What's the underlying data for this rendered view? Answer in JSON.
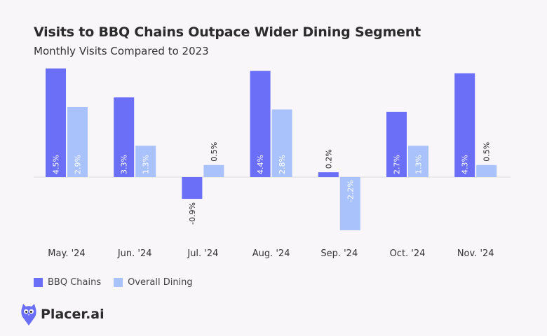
{
  "header": {
    "title": "Visits to BBQ Chains Outpace Wider Dining Segment",
    "subtitle": "Monthly Visits Compared to 2023"
  },
  "colors": {
    "bbq": "#6b6ff7",
    "dining": "#a9c2fb",
    "baseline": "#dddddd",
    "logo": "#6b6ff7"
  },
  "logo": {
    "text": "Placer.ai",
    "icon": "owl-icon"
  },
  "chart_data": {
    "type": "bar",
    "title": "Visits to BBQ Chains Outpace Wider Dining Segment",
    "subtitle": "Monthly Visits Compared to 2023",
    "categories": [
      "May. '24",
      "Jun. '24",
      "Jul. '24",
      "Aug. '24",
      "Sep. '24",
      "Oct. '24",
      "Nov. '24"
    ],
    "series": [
      {
        "name": "BBQ Chains",
        "values": [
          4.5,
          3.3,
          -0.9,
          4.4,
          0.2,
          2.7,
          4.3
        ],
        "labels": [
          "4.5%",
          "3.3%",
          "-0.9%",
          "4.4%",
          "0.2%",
          "2.7%",
          "4.3%"
        ]
      },
      {
        "name": "Overall Dining",
        "values": [
          2.9,
          1.3,
          0.5,
          2.8,
          -2.2,
          1.3,
          0.5
        ],
        "labels": [
          "2.9%",
          "1.3%",
          "0.5%",
          "2.8%",
          "-2.2%",
          "1.3%",
          "0.5%"
        ]
      }
    ],
    "xlabel": "",
    "ylabel": "",
    "ylim": [
      -2.2,
      4.5
    ],
    "grid": false,
    "legend": "bottom-left"
  }
}
